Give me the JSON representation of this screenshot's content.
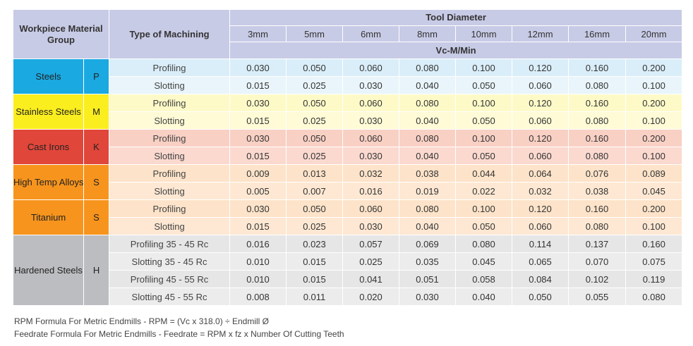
{
  "header": {
    "material_group": "Workpiece Material Group",
    "machining": "Type of Machining",
    "tool_diameter": "Tool Diameter",
    "diameters": [
      "3mm",
      "5mm",
      "6mm",
      "8mm",
      "10mm",
      "12mm",
      "16mm",
      "20mm"
    ],
    "unit": "Vc-M/Min"
  },
  "groups": [
    {
      "name": "Steels",
      "iso": "P",
      "group_color": "#1aa9e1",
      "row_colors": [
        "#daeef9",
        "#e9f5fb"
      ],
      "rows": [
        {
          "op": "Profiling",
          "values": [
            "0.030",
            "0.050",
            "0.060",
            "0.080",
            "0.100",
            "0.120",
            "0.160",
            "0.200"
          ]
        },
        {
          "op": "Slotting",
          "values": [
            "0.015",
            "0.025",
            "0.030",
            "0.040",
            "0.050",
            "0.060",
            "0.080",
            "0.100"
          ]
        }
      ]
    },
    {
      "name": "Stainless Steels",
      "iso": "M",
      "group_color": "#fbee1e",
      "row_colors": [
        "#fdfac8",
        "#fefbd6"
      ],
      "rows": [
        {
          "op": "Profiling",
          "values": [
            "0.030",
            "0.050",
            "0.060",
            "0.080",
            "0.100",
            "0.120",
            "0.160",
            "0.200"
          ]
        },
        {
          "op": "Slotting",
          "values": [
            "0.015",
            "0.025",
            "0.030",
            "0.040",
            "0.050",
            "0.060",
            "0.080",
            "0.100"
          ]
        }
      ]
    },
    {
      "name": "Cast Irons",
      "iso": "K",
      "group_color": "#e0463a",
      "row_colors": [
        "#f9d0c4",
        "#fbd9cf"
      ],
      "rows": [
        {
          "op": "Profiling",
          "values": [
            "0.030",
            "0.050",
            "0.060",
            "0.080",
            "0.100",
            "0.120",
            "0.160",
            "0.200"
          ]
        },
        {
          "op": "Slotting",
          "values": [
            "0.015",
            "0.025",
            "0.030",
            "0.040",
            "0.050",
            "0.060",
            "0.080",
            "0.100"
          ]
        }
      ]
    },
    {
      "name": "High Temp Alloys",
      "iso": "S",
      "group_color": "#f7941d",
      "row_colors": [
        "#fde3c9",
        "#fee8d3"
      ],
      "rows": [
        {
          "op": "Profiling",
          "values": [
            "0.009",
            "0.013",
            "0.032",
            "0.038",
            "0.044",
            "0.064",
            "0.076",
            "0.089"
          ]
        },
        {
          "op": "Slotting",
          "values": [
            "0.005",
            "0.007",
            "0.016",
            "0.019",
            "0.022",
            "0.032",
            "0.038",
            "0.045"
          ]
        }
      ]
    },
    {
      "name": "Titanium",
      "iso": "S",
      "group_color": "#f7941d",
      "row_colors": [
        "#fde3c9",
        "#fee8d3"
      ],
      "rows": [
        {
          "op": "Profiling",
          "values": [
            "0.030",
            "0.050",
            "0.060",
            "0.080",
            "0.100",
            "0.120",
            "0.160",
            "0.200"
          ]
        },
        {
          "op": "Slotting",
          "values": [
            "0.015",
            "0.025",
            "0.030",
            "0.040",
            "0.050",
            "0.060",
            "0.080",
            "0.100"
          ]
        }
      ]
    },
    {
      "name": "Hardened Steels",
      "iso": "H",
      "group_color": "#bcbdc0",
      "row_colors": [
        "#e6e6e7",
        "#ececed"
      ],
      "rows": [
        {
          "op": "Profiling 35 - 45 Rc",
          "values": [
            "0.016",
            "0.023",
            "0.057",
            "0.069",
            "0.080",
            "0.114",
            "0.137",
            "0.160"
          ]
        },
        {
          "op": "Slotting 35 - 45 Rc",
          "values": [
            "0.010",
            "0.015",
            "0.025",
            "0.035",
            "0.045",
            "0.065",
            "0.070",
            "0.075"
          ]
        },
        {
          "op": "Profiling 45 - 55 Rc",
          "values": [
            "0.010",
            "0.015",
            "0.041",
            "0.051",
            "0.058",
            "0.084",
            "0.102",
            "0.119"
          ]
        },
        {
          "op": "Slotting 45 - 55 Rc",
          "values": [
            "0.008",
            "0.011",
            "0.020",
            "0.030",
            "0.040",
            "0.050",
            "0.055",
            "0.080"
          ]
        }
      ]
    }
  ],
  "footer": {
    "rpm_formula": "RPM Formula For Metric Endmills - RPM = (Vc x 318.0) ÷ Endmill Ø",
    "feed_formula": "Feedrate Formula For Metric Endmills - Feedrate = RPM x fz x Number Of Cutting Teeth"
  }
}
